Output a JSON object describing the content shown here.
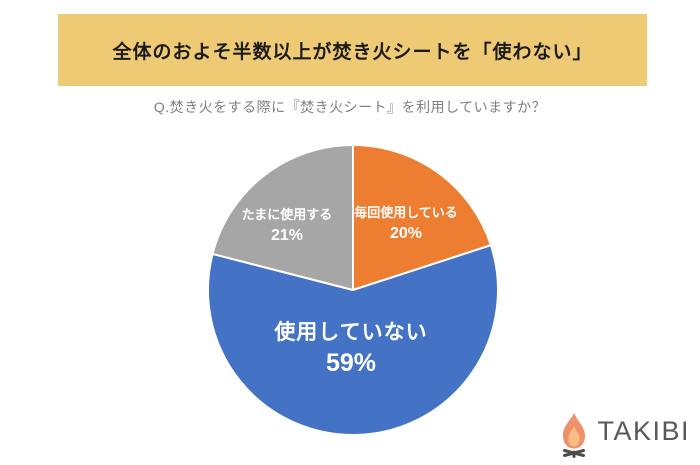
{
  "banner": {
    "title": "全体のおよそ半数以上が焚き火シートを「使わない」",
    "background": "#eeca74",
    "text_color": "#1c1c1c"
  },
  "question": {
    "text": "Q.焚き火をする際に『焚き火シート』を利用していますか？",
    "color": "#808080"
  },
  "chart_data": {
    "type": "pie",
    "title": "Q.焚き火をする際に『焚き火シート』を利用していますか？",
    "start_angle_deg": 0,
    "direction": "clockwise",
    "label_color": "#ffffff",
    "separator_color": "#ffffff",
    "slices": [
      {
        "label": "毎回使用している",
        "value": 20,
        "pct_label": "20%",
        "color": "#ed7d31"
      },
      {
        "label": "使用していない",
        "value": 59,
        "pct_label": "59%",
        "color": "#4472c4"
      },
      {
        "label": "たまに使用する",
        "value": 21,
        "pct_label": "21%",
        "color": "#a6a6a6"
      }
    ]
  },
  "logo": {
    "text": "TAKIBI",
    "text_color": "#595959",
    "icon": "campfire-icon",
    "flame_outer_color": "#f0916b",
    "flame_inner_color": "#f8bc85",
    "logs_color": "#4d4d4d"
  }
}
